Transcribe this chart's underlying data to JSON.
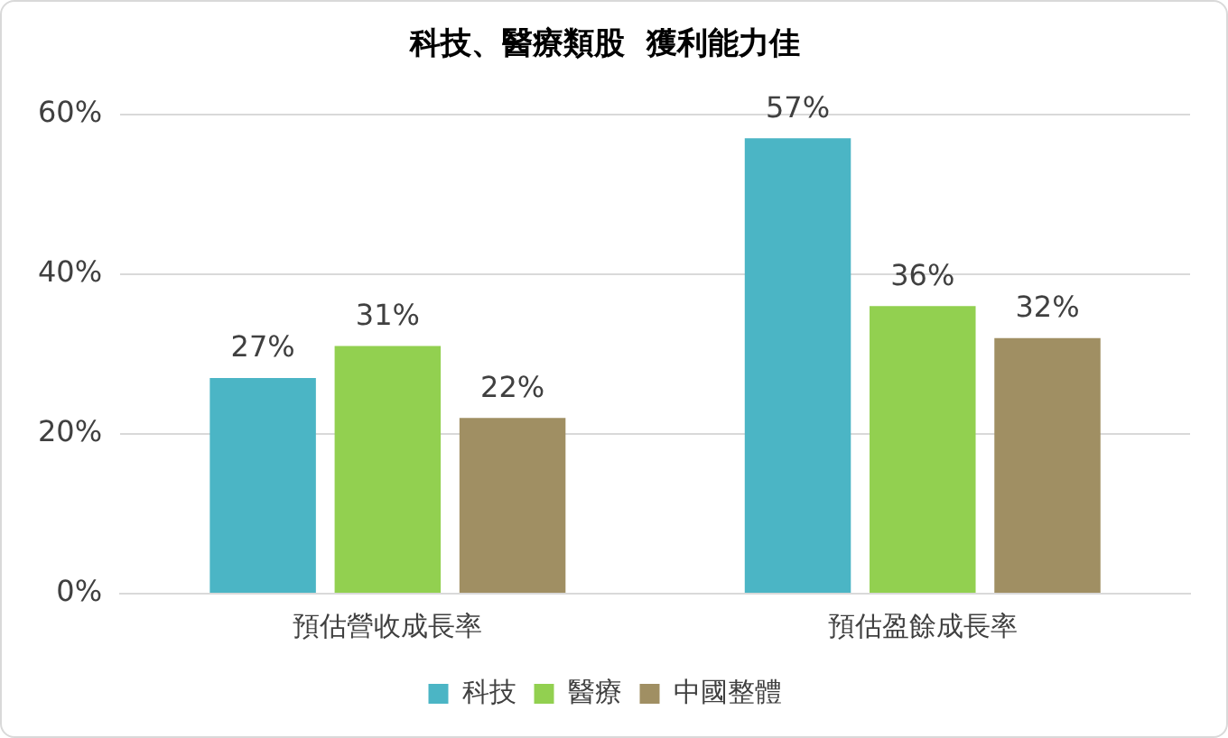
{
  "chart_data": {
    "type": "bar",
    "title": "科技、醫療類股  獲利能力佳",
    "categories": [
      "預估營收成長率",
      "預估盈餘成長率"
    ],
    "series": [
      {
        "name": "科技",
        "color": "#4bb5c5",
        "values": [
          27,
          57
        ],
        "value_labels": [
          "27%",
          "57%"
        ]
      },
      {
        "name": "醫療",
        "color": "#92d050",
        "values": [
          31,
          36
        ],
        "value_labels": [
          "31%",
          "36%"
        ]
      },
      {
        "name": "中國整體",
        "color": "#a08f63",
        "values": [
          22,
          32
        ],
        "value_labels": [
          "22%",
          "32%"
        ]
      }
    ],
    "ylim": [
      0,
      60
    ],
    "yticks": [
      {
        "value": 0,
        "label": "0%"
      },
      {
        "value": 20,
        "label": "20%"
      },
      {
        "value": 40,
        "label": "40%"
      },
      {
        "value": 60,
        "label": "60%"
      }
    ],
    "grid": "y",
    "legend": "bottom"
  }
}
